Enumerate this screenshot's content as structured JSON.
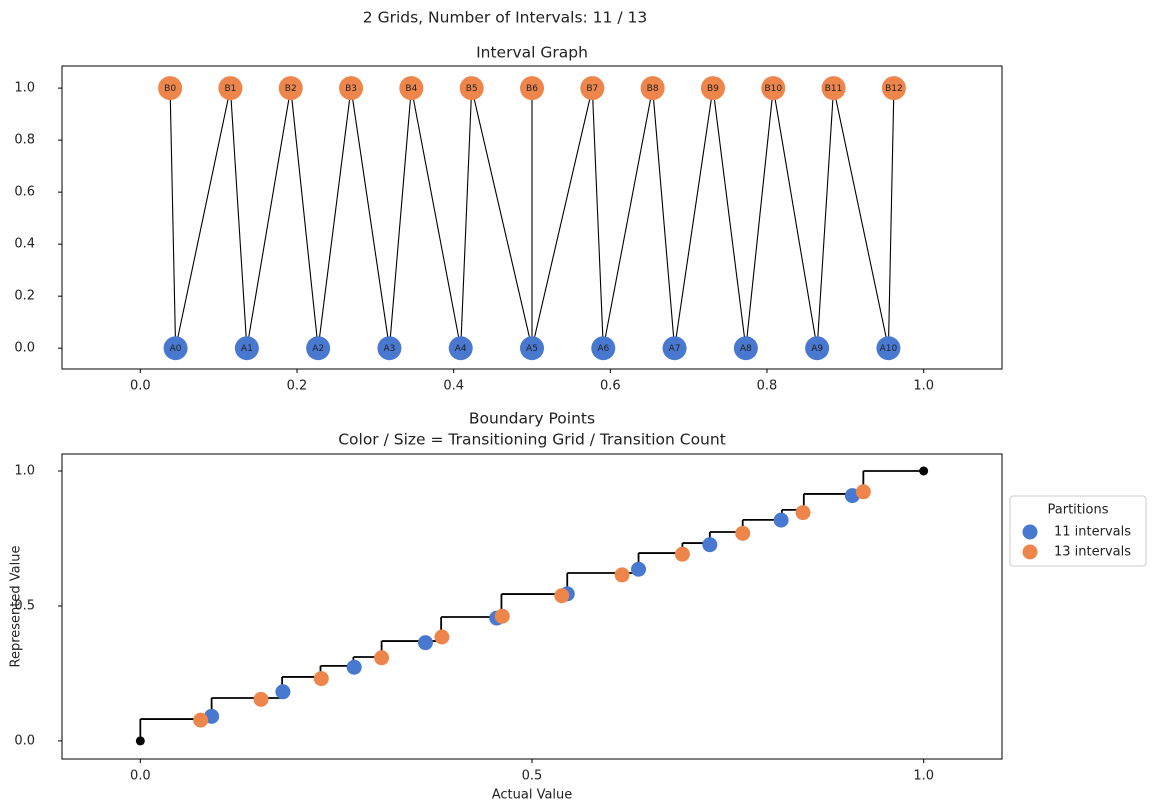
{
  "title": "2 Grids, Number of Intervals: 11 / 13",
  "chart_data": [
    {
      "type": "network",
      "title": "Interval Graph",
      "node_sets": [
        {
          "color": "#4878d0",
          "labels": [
            "A0",
            "A1",
            "A2",
            "A3",
            "A4",
            "A5",
            "A6",
            "A7",
            "A8",
            "A9",
            "A10"
          ],
          "x": [
            0.045,
            0.136,
            0.227,
            0.318,
            0.409,
            0.5,
            0.591,
            0.682,
            0.773,
            0.864,
            0.955
          ],
          "y": [
            0,
            0,
            0,
            0,
            0,
            0,
            0,
            0,
            0,
            0,
            0
          ]
        },
        {
          "color": "#ee854a",
          "labels": [
            "B0",
            "B1",
            "B2",
            "B3",
            "B4",
            "B5",
            "B6",
            "B7",
            "B8",
            "B9",
            "B10",
            "B11",
            "B12"
          ],
          "x": [
            0.038,
            0.115,
            0.192,
            0.269,
            0.346,
            0.423,
            0.5,
            0.577,
            0.654,
            0.731,
            0.808,
            0.885,
            0.962
          ],
          "y": [
            1,
            1,
            1,
            1,
            1,
            1,
            1,
            1,
            1,
            1,
            1,
            1,
            1
          ]
        }
      ],
      "edges": [
        [
          0,
          0
        ],
        [
          0,
          1
        ],
        [
          1,
          1
        ],
        [
          1,
          2
        ],
        [
          2,
          2
        ],
        [
          2,
          3
        ],
        [
          3,
          3
        ],
        [
          3,
          4
        ],
        [
          4,
          4
        ],
        [
          4,
          5
        ],
        [
          5,
          5
        ],
        [
          5,
          6
        ],
        [
          5,
          7
        ],
        [
          6,
          7
        ],
        [
          6,
          8
        ],
        [
          7,
          8
        ],
        [
          7,
          9
        ],
        [
          8,
          9
        ],
        [
          8,
          10
        ],
        [
          9,
          10
        ],
        [
          9,
          11
        ],
        [
          10,
          11
        ],
        [
          10,
          12
        ]
      ],
      "edge_color": "#000000",
      "xlim": [
        -0.1,
        1.1
      ],
      "ylim": [
        -0.08,
        1.085
      ],
      "xticks": [
        {
          "value": 0,
          "label": "0.0"
        },
        {
          "value": 0.2,
          "label": "0.2"
        },
        {
          "value": 0.4,
          "label": "0.4"
        },
        {
          "value": 0.6,
          "label": "0.6"
        },
        {
          "value": 0.8,
          "label": "0.8"
        },
        {
          "value": 1,
          "label": "1.0"
        }
      ],
      "yticks": [
        {
          "value": 0,
          "label": "0.0"
        },
        {
          "value": 0.2,
          "label": "0.2"
        },
        {
          "value": 0.4,
          "label": "0.4"
        },
        {
          "value": 0.6,
          "label": "0.6"
        },
        {
          "value": 0.8,
          "label": "0.8"
        },
        {
          "value": 1,
          "label": "1.0"
        }
      ]
    },
    {
      "type": "scatter",
      "title": "Boundary Points",
      "subtitle": "Color / Size = Transitioning Grid / Transition Count",
      "xlabel": "Actual Value",
      "ylabel": "Represented Value",
      "xlim": [
        -0.1,
        1.1
      ],
      "ylim": [
        -0.067,
        1.063
      ],
      "xticks": [
        {
          "value": 0,
          "label": "0.0"
        },
        {
          "value": 0.5,
          "label": "0.5"
        },
        {
          "value": 1,
          "label": "1.0"
        }
      ],
      "yticks": [
        {
          "value": 0,
          "label": "0.0"
        },
        {
          "value": 0.5,
          "label": "0.5"
        },
        {
          "value": 1,
          "label": "1.0"
        }
      ],
      "step": {
        "color": "#000000",
        "x": [
          0,
          0.091,
          0.181,
          0.23,
          0.272,
          0.308,
          0.384,
          0.461,
          0.545,
          0.636,
          0.692,
          0.727,
          0.769,
          0.819,
          0.847,
          0.923,
          1
        ],
        "y": [
          0,
          0.081,
          0.159,
          0.237,
          0.278,
          0.311,
          0.37,
          0.459,
          0.544,
          0.622,
          0.696,
          0.733,
          0.774,
          0.819,
          0.856,
          0.915,
          1
        ]
      },
      "endpoints": {
        "color": "#000000",
        "x": [
          0,
          1
        ],
        "y": [
          0,
          1
        ]
      },
      "legend_title": "Partitions",
      "legend": "right outside",
      "series": [
        {
          "name": "11 intervals",
          "color": "#4878d0",
          "x": [
            0.091,
            0.182,
            0.273,
            0.364,
            0.455,
            0.545,
            0.636,
            0.727,
            0.818,
            0.909
          ],
          "values": [
            0.091,
            0.182,
            0.273,
            0.364,
            0.455,
            0.545,
            0.636,
            0.727,
            0.818,
            0.909
          ]
        },
        {
          "name": "13 intervals",
          "color": "#ee854a",
          "x": [
            0.077,
            0.154,
            0.231,
            0.308,
            0.385,
            0.462,
            0.538,
            0.615,
            0.692,
            0.769,
            0.846,
            0.923
          ],
          "values": [
            0.077,
            0.154,
            0.231,
            0.308,
            0.385,
            0.462,
            0.538,
            0.615,
            0.692,
            0.769,
            0.846,
            0.923
          ]
        }
      ]
    }
  ]
}
